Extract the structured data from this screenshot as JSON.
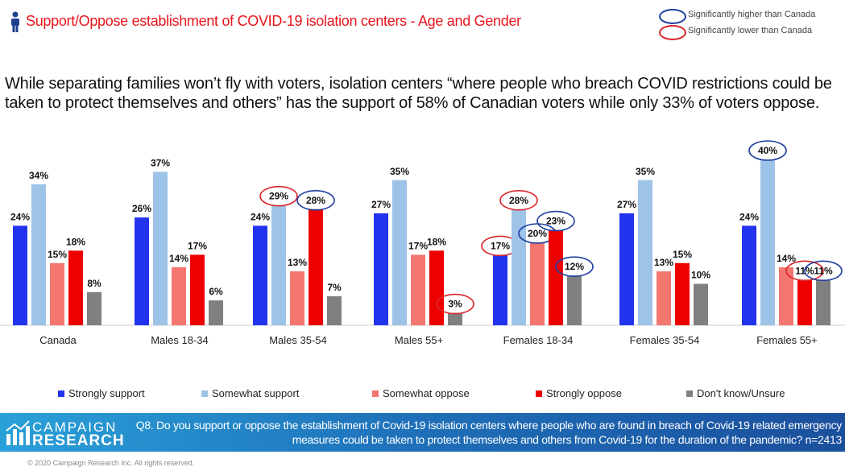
{
  "header": {
    "title": "Support/Oppose establishment of COVID-19 isolation centers - Age and Gender",
    "icon": "person-icon"
  },
  "key": {
    "higher": "Significantly higher than Canada",
    "lower": "Significantly lower than Canada",
    "higher_color": "#1f3fa0",
    "lower_color": "#d9262b"
  },
  "subtitle": "While separating families won’t fly with voters, isolation centers “where people who breach COVID restrictions could be taken to protect themselves and others” has the support of 58% of Canadian voters while only 33% of voters oppose.",
  "chart_data": {
    "type": "bar",
    "categories": [
      "Canada",
      "Males 18-34",
      "Males 35-54",
      "Males 55+",
      "Females 18-34",
      "Females 35-54",
      "Females 55+"
    ],
    "series": [
      {
        "name": "Strongly support",
        "color": "#2233ee",
        "values": [
          24,
          26,
          24,
          27,
          17,
          27,
          24
        ]
      },
      {
        "name": "Somewhat support",
        "color": "#9dc3e6",
        "values": [
          34,
          37,
          29,
          35,
          28,
          35,
          40
        ]
      },
      {
        "name": "Somewhat oppose",
        "color": "#f47670",
        "values": [
          15,
          14,
          13,
          17,
          20,
          13,
          14
        ]
      },
      {
        "name": "Strongly oppose",
        "color": "#ee0000",
        "values": [
          18,
          17,
          28,
          18,
          23,
          15,
          11
        ]
      },
      {
        "name": "Don't know/Unsure",
        "color": "#808080",
        "values": [
          8,
          6,
          7,
          3,
          12,
          10,
          11
        ]
      }
    ],
    "significance": [
      {
        "category": "Males 35-54",
        "series": "Somewhat support",
        "mark": "lower"
      },
      {
        "category": "Males 35-54",
        "series": "Strongly oppose",
        "mark": "higher"
      },
      {
        "category": "Males 55+",
        "series": "Don't know/Unsure",
        "mark": "lower"
      },
      {
        "category": "Females 18-34",
        "series": "Strongly support",
        "mark": "lower"
      },
      {
        "category": "Females 18-34",
        "series": "Somewhat support",
        "mark": "lower"
      },
      {
        "category": "Females 18-34",
        "series": "Somewhat oppose",
        "mark": "higher"
      },
      {
        "category": "Females 18-34",
        "series": "Strongly oppose",
        "mark": "higher"
      },
      {
        "category": "Females 18-34",
        "series": "Don't know/Unsure",
        "mark": "higher"
      },
      {
        "category": "Females 55+",
        "series": "Somewhat support",
        "mark": "higher"
      },
      {
        "category": "Females 55+",
        "series": "Strongly oppose",
        "mark": "lower"
      },
      {
        "category": "Females 55+",
        "series": "Don't know/Unsure",
        "mark": "higher"
      }
    ],
    "value_suffix": "%",
    "ylim": [
      0,
      45
    ],
    "grid": false,
    "legend_placement": "bottom"
  },
  "footer": {
    "logo_line1": "CAMPAIGN",
    "logo_line2": "RESEARCH",
    "question": "Q8. Do you support or oppose the establishment of Covid-19 isolation centers where people who are found in breach of Covid-19 related emergency measures could be taken to protect themselves and others from Covid-19 for the duration of the pandemic? n=2413",
    "copyright": "© 2020 Campaign Research Inc. All rights reserved."
  }
}
